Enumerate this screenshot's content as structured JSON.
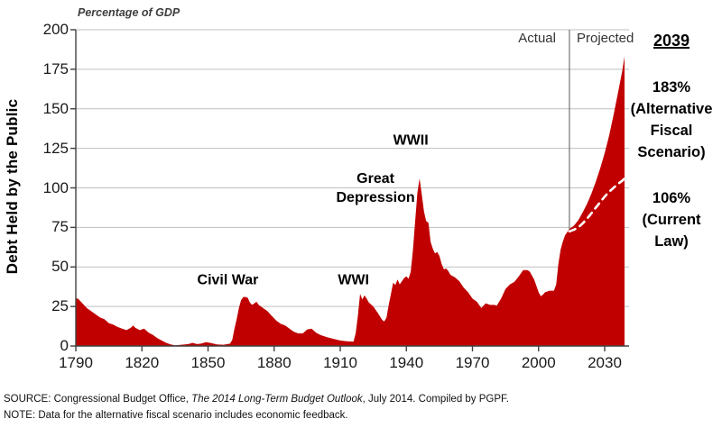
{
  "chart_data": {
    "type": "area",
    "title": "Percentage of GDP",
    "ylabel": "Debt Held by the Public",
    "y_ticks": [
      0,
      25,
      50,
      75,
      100,
      125,
      150,
      175,
      200
    ],
    "x_ticks": [
      1790,
      1820,
      1850,
      1880,
      1910,
      1940,
      1970,
      2000,
      2030
    ],
    "xlim": [
      1790,
      2041
    ],
    "ylim": [
      0,
      200
    ],
    "divider_year": 2014,
    "actual_label": "Actual",
    "projected_label": "Projected",
    "colors": {
      "area": "#C00000",
      "current_law_line": "#FFFFFF",
      "gridline": "#BFBFBF",
      "axis": "#404040",
      "divider": "#595959"
    },
    "series": [
      {
        "name": "Actual debt held by the public (% of GDP)",
        "points": [
          [
            1790,
            30
          ],
          [
            1791,
            30
          ],
          [
            1793,
            27
          ],
          [
            1795,
            24
          ],
          [
            1797,
            22
          ],
          [
            1799,
            20
          ],
          [
            1801,
            18
          ],
          [
            1803,
            17
          ],
          [
            1805,
            14.5
          ],
          [
            1807,
            13.5
          ],
          [
            1809,
            12
          ],
          [
            1811,
            11
          ],
          [
            1813,
            10
          ],
          [
            1815,
            11.5
          ],
          [
            1816,
            13
          ],
          [
            1817,
            11.5
          ],
          [
            1819,
            10
          ],
          [
            1821,
            11
          ],
          [
            1823,
            8.5
          ],
          [
            1825,
            7
          ],
          [
            1827,
            5
          ],
          [
            1829,
            3.5
          ],
          [
            1831,
            2
          ],
          [
            1833,
            1
          ],
          [
            1835,
            0.4
          ],
          [
            1838,
            0.8
          ],
          [
            1841,
            1.2
          ],
          [
            1843,
            2
          ],
          [
            1845,
            1.2
          ],
          [
            1847,
            1.6
          ],
          [
            1849,
            2.4
          ],
          [
            1851,
            2
          ],
          [
            1854,
            1
          ],
          [
            1857,
            0.8
          ],
          [
            1860,
            1.5
          ],
          [
            1861,
            4
          ],
          [
            1862,
            11
          ],
          [
            1863,
            17
          ],
          [
            1864,
            24
          ],
          [
            1865,
            29
          ],
          [
            1866,
            31
          ],
          [
            1867,
            31
          ],
          [
            1868,
            30.5
          ],
          [
            1869,
            27.5
          ],
          [
            1870,
            26
          ],
          [
            1871,
            27
          ],
          [
            1872,
            28
          ],
          [
            1873,
            26
          ],
          [
            1875,
            24
          ],
          [
            1877,
            22
          ],
          [
            1879,
            19
          ],
          [
            1881,
            16
          ],
          [
            1883,
            14
          ],
          [
            1885,
            13
          ],
          [
            1887,
            11
          ],
          [
            1889,
            9
          ],
          [
            1891,
            8
          ],
          [
            1893,
            8
          ],
          [
            1895,
            10.5
          ],
          [
            1897,
            11
          ],
          [
            1899,
            8.5
          ],
          [
            1901,
            7
          ],
          [
            1904,
            5.5
          ],
          [
            1907,
            4.5
          ],
          [
            1910,
            3.5
          ],
          [
            1913,
            3
          ],
          [
            1916,
            2.8
          ],
          [
            1917,
            8
          ],
          [
            1918,
            19
          ],
          [
            1919,
            33
          ],
          [
            1920,
            29.5
          ],
          [
            1921,
            32
          ],
          [
            1922,
            30
          ],
          [
            1923,
            27.5
          ],
          [
            1925,
            25
          ],
          [
            1927,
            21
          ],
          [
            1929,
            16.5
          ],
          [
            1930,
            15.5
          ],
          [
            1931,
            18
          ],
          [
            1932,
            26
          ],
          [
            1933,
            33
          ],
          [
            1934,
            40
          ],
          [
            1935,
            38.5
          ],
          [
            1936,
            42
          ],
          [
            1937,
            39
          ],
          [
            1938,
            41
          ],
          [
            1939,
            43
          ],
          [
            1940,
            44
          ],
          [
            1941,
            42.5
          ],
          [
            1942,
            47
          ],
          [
            1943,
            61
          ],
          [
            1944,
            79
          ],
          [
            1945,
            97
          ],
          [
            1946,
            106
          ],
          [
            1947,
            96
          ],
          [
            1948,
            85
          ],
          [
            1949,
            79
          ],
          [
            1950,
            78
          ],
          [
            1951,
            66
          ],
          [
            1952,
            61.5
          ],
          [
            1953,
            58.5
          ],
          [
            1954,
            59.5
          ],
          [
            1955,
            57
          ],
          [
            1956,
            52
          ],
          [
            1957,
            48.5
          ],
          [
            1958,
            49
          ],
          [
            1959,
            47.5
          ],
          [
            1960,
            45
          ],
          [
            1962,
            43.5
          ],
          [
            1964,
            41
          ],
          [
            1966,
            37
          ],
          [
            1968,
            34
          ],
          [
            1970,
            30
          ],
          [
            1972,
            28
          ],
          [
            1974,
            24
          ],
          [
            1976,
            27
          ],
          [
            1978,
            26
          ],
          [
            1980,
            26
          ],
          [
            1981,
            25.5
          ],
          [
            1983,
            30
          ],
          [
            1985,
            36
          ],
          [
            1987,
            39
          ],
          [
            1989,
            40.5
          ],
          [
            1991,
            44
          ],
          [
            1993,
            48
          ],
          [
            1995,
            48
          ],
          [
            1996,
            47
          ],
          [
            1998,
            42
          ],
          [
            2000,
            34
          ],
          [
            2001,
            31.5
          ],
          [
            2002,
            32.5
          ],
          [
            2003,
            34
          ],
          [
            2005,
            35
          ],
          [
            2007,
            35
          ],
          [
            2008,
            39
          ],
          [
            2009,
            52
          ],
          [
            2010,
            61
          ],
          [
            2011,
            66
          ],
          [
            2012,
            70
          ],
          [
            2013,
            72
          ],
          [
            2014,
            74
          ]
        ]
      },
      {
        "name": "Projected - Alternative Fiscal Scenario (ends 183% in 2039)",
        "points": [
          [
            2014,
            74
          ],
          [
            2016,
            76
          ],
          [
            2018,
            79.5
          ],
          [
            2020,
            84.5
          ],
          [
            2022,
            90
          ],
          [
            2024,
            96.5
          ],
          [
            2026,
            104
          ],
          [
            2028,
            112.5
          ],
          [
            2030,
            122
          ],
          [
            2032,
            133
          ],
          [
            2034,
            146
          ],
          [
            2036,
            160
          ],
          [
            2038,
            174
          ],
          [
            2039,
            183
          ]
        ]
      },
      {
        "name": "Projected - Current Law (ends 106% in 2039)",
        "style": "dashed-white",
        "points": [
          [
            2014,
            72.5
          ],
          [
            2016,
            73.5
          ],
          [
            2018,
            75
          ],
          [
            2020,
            77.5
          ],
          [
            2022,
            80.5
          ],
          [
            2024,
            84
          ],
          [
            2026,
            87.5
          ],
          [
            2028,
            91
          ],
          [
            2030,
            94.5
          ],
          [
            2032,
            97.5
          ],
          [
            2034,
            100
          ],
          [
            2036,
            102.5
          ],
          [
            2038,
            104.5
          ],
          [
            2039,
            106
          ]
        ]
      }
    ],
    "annotations": [
      {
        "id": "civil-war",
        "lines": [
          "Civil War"
        ],
        "year": 1859,
        "value": 41.5
      },
      {
        "id": "wwi",
        "lines": [
          "WWI"
        ],
        "year": 1916,
        "value": 41.5
      },
      {
        "id": "great-depression",
        "lines": [
          "Great",
          "Depression"
        ],
        "year": 1926,
        "value": 100
      },
      {
        "id": "wwii",
        "lines": [
          "WWII"
        ],
        "year": 1942,
        "value": 130
      }
    ]
  },
  "right_panel": {
    "year_label": "2039",
    "afs_lines": [
      "183%",
      "(Alternative",
      "Fiscal",
      "Scenario)"
    ],
    "current_law_lines": [
      "106%",
      "(Current",
      "Law)"
    ]
  },
  "footer": {
    "source_prefix": "SOURCE:  Congressional Budget Office, ",
    "source_title": "The 2014 Long-Term Budget Outlook",
    "source_suffix": ", July 2014. Compiled by PGPF.",
    "note": "NOTE:  Data for the alternative fiscal scenario includes economic feedback."
  }
}
